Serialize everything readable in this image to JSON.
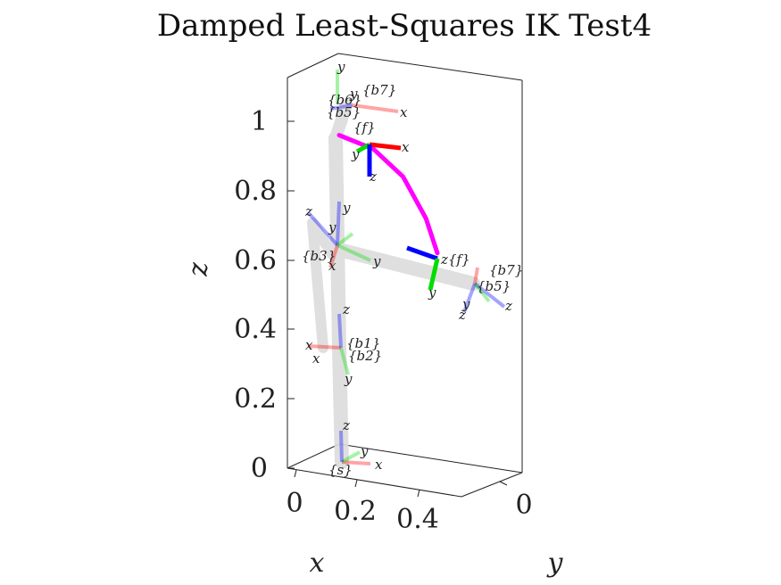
{
  "chart_data": {
    "type": "scatter",
    "title": "Damped Least-Squares IK Test4",
    "axes": {
      "x": {
        "label": "x",
        "ticks": [
          "0",
          "0.2",
          "0.4"
        ]
      },
      "y": {
        "label": "y",
        "ticks": [
          "0"
        ]
      },
      "z": {
        "label": "z",
        "ticks": [
          "0",
          "0.2",
          "0.4",
          "0.6",
          "0.8",
          "1"
        ],
        "lim": [
          0,
          1.12
        ]
      }
    },
    "trajectory": {
      "color": "#ff00ff",
      "points": [
        [
          0.0,
          0.96
        ],
        [
          0.15,
          0.92
        ],
        [
          0.28,
          0.84
        ],
        [
          0.38,
          0.72
        ],
        [
          0.43,
          0.62
        ]
      ]
    },
    "frames": {
      "base": "{s}",
      "target_start": "{f}",
      "target_end": "{f}",
      "pose1_last": "{b7}",
      "pose2_last": "{b7}",
      "pose1_sub": "{b5}",
      "pose1_sub2": "{b6}",
      "mid": "{b3}",
      "low": "{b1}",
      "low2": "{b2}",
      "axis_x": "x",
      "axis_y": "y",
      "axis_z": "z"
    },
    "colors": {
      "x_axis": "#ff0000",
      "y_axis": "#00dd00",
      "z_axis": "#0000ff",
      "link": "#d8d8d8"
    }
  }
}
